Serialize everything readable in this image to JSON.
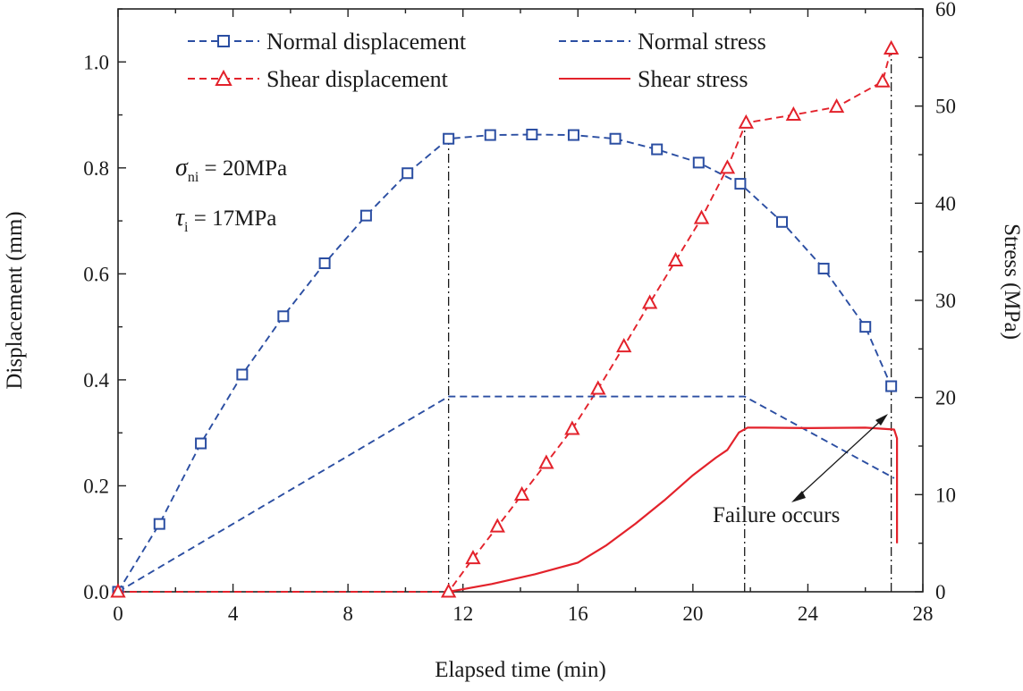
{
  "chart_data": {
    "type": "line",
    "xlabel": "Elapsed time (min)",
    "ylabel_left": "Displacement (mm)",
    "ylabel_right": "Stress (MPa)",
    "xlim": [
      0,
      28
    ],
    "ylim_left": [
      0,
      1.1
    ],
    "ylim_right": [
      0,
      60
    ],
    "xticks": [
      "0",
      "4",
      "8",
      "12",
      "16",
      "20",
      "24",
      "28"
    ],
    "yticks_left": [
      "0.0",
      "0.2",
      "0.4",
      "0.6",
      "0.8",
      "1.0"
    ],
    "yticks_right": [
      "0",
      "10",
      "20",
      "30",
      "40",
      "50",
      "60"
    ],
    "legend": {
      "normal_displacement": "Normal displacement",
      "shear_displacement": "Shear displacement",
      "normal_stress": "Normal stress",
      "shear_stress": "Shear stress"
    },
    "annotations": {
      "sigma_symbol": "σ",
      "sigma_sub": "ni",
      "sigma_value": " = 20MPa",
      "tau_symbol": "τ",
      "tau_sub": "i",
      "tau_value": " = 17MPa",
      "failure": "Failure occurs"
    },
    "guide_lines_x": [
      11.5,
      21.8,
      26.9
    ],
    "colors": {
      "blue": "#2b4ea2",
      "red": "#e3222b"
    },
    "series": [
      {
        "name": "Normal displacement",
        "axis": "left",
        "color": "#2b4ea2",
        "style": "dashed",
        "marker": "square",
        "x": [
          0,
          1.44,
          2.88,
          4.32,
          5.75,
          7.19,
          8.63,
          10.07,
          11.5,
          12.95,
          14.4,
          15.85,
          17.3,
          18.75,
          20.2,
          21.65,
          23.1,
          24.55,
          26.0,
          26.9
        ],
        "y": [
          0.0,
          0.128,
          0.28,
          0.41,
          0.52,
          0.62,
          0.71,
          0.79,
          0.855,
          0.862,
          0.863,
          0.862,
          0.855,
          0.835,
          0.81,
          0.77,
          0.698,
          0.61,
          0.5,
          0.388
        ]
      },
      {
        "name": "Shear displacement",
        "axis": "left",
        "color": "#e3222b",
        "style": "dashed",
        "marker": "triangle",
        "x": [
          0,
          11.5,
          12.35,
          13.2,
          14.05,
          14.9,
          15.8,
          16.7,
          17.6,
          18.5,
          19.4,
          20.3,
          21.2,
          21.85,
          23.5,
          25.0,
          26.6,
          26.9
        ],
        "y": [
          0.0,
          0.0,
          0.063,
          0.123,
          0.183,
          0.243,
          0.307,
          0.383,
          0.463,
          0.545,
          0.625,
          0.705,
          0.8,
          0.885,
          0.9,
          0.915,
          0.963,
          1.025
        ]
      },
      {
        "name": "Normal stress",
        "axis": "right",
        "color": "#2b4ea2",
        "style": "dashed",
        "marker": "none",
        "x": [
          0,
          11.5,
          21.8,
          27.0
        ],
        "y": [
          0,
          20.1,
          20.1,
          11.7
        ]
      },
      {
        "name": "Shear stress",
        "axis": "right",
        "color": "#e3222b",
        "style": "solid",
        "marker": "none",
        "x": [
          11.5,
          13.0,
          14.5,
          16.0,
          17.0,
          18.0,
          19.0,
          20.0,
          20.8,
          21.2,
          21.6,
          21.9,
          22.5,
          24.0,
          26.0,
          27.0,
          27.1,
          27.1
        ],
        "y": [
          0,
          0.8,
          1.8,
          3.0,
          4.8,
          7.0,
          9.4,
          12.0,
          13.8,
          14.6,
          16.4,
          16.9,
          16.9,
          16.85,
          16.9,
          16.7,
          15.8,
          5.0
        ]
      }
    ]
  }
}
